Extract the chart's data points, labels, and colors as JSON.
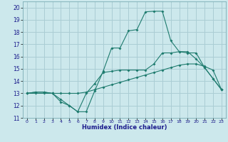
{
  "title": "",
  "xlabel": "Humidex (Indice chaleur)",
  "bg_color": "#cce8ec",
  "grid_color": "#aacdd4",
  "line_color": "#1e7b6e",
  "xlim": [
    -0.5,
    23.5
  ],
  "ylim": [
    11,
    20.5
  ],
  "xticks": [
    0,
    1,
    2,
    3,
    4,
    5,
    6,
    7,
    8,
    9,
    10,
    11,
    12,
    13,
    14,
    15,
    16,
    17,
    18,
    19,
    20,
    21,
    22,
    23
  ],
  "yticks": [
    11,
    12,
    13,
    14,
    15,
    16,
    17,
    18,
    19,
    20
  ],
  "line1_x": [
    0,
    1,
    2,
    3,
    4,
    5,
    6,
    7,
    8,
    9,
    10,
    11,
    12,
    13,
    14,
    15,
    16,
    17,
    18,
    19,
    20,
    21,
    22,
    23
  ],
  "line1_y": [
    13.0,
    13.0,
    13.0,
    13.0,
    13.0,
    13.0,
    13.0,
    13.1,
    13.3,
    13.5,
    13.7,
    13.9,
    14.1,
    14.3,
    14.5,
    14.7,
    14.9,
    15.1,
    15.3,
    15.4,
    15.4,
    15.2,
    14.9,
    13.3
  ],
  "line2_x": [
    0,
    1,
    2,
    3,
    4,
    5,
    6,
    7,
    8,
    9,
    10,
    11,
    12,
    13,
    14,
    15,
    16,
    17,
    18,
    19,
    20,
    21,
    22,
    23
  ],
  "line2_y": [
    13.0,
    13.1,
    13.1,
    13.0,
    12.5,
    12.0,
    11.5,
    13.0,
    13.8,
    14.7,
    14.8,
    14.9,
    14.9,
    14.9,
    14.9,
    15.4,
    16.3,
    16.3,
    16.4,
    16.4,
    15.8,
    15.1,
    14.2,
    13.3
  ],
  "line3_x": [
    0,
    1,
    2,
    3,
    4,
    5,
    6,
    7,
    8,
    9,
    10,
    11,
    12,
    13,
    14,
    15,
    16,
    17,
    18,
    19,
    20,
    21,
    22,
    23
  ],
  "line3_y": [
    13.0,
    13.1,
    13.1,
    13.0,
    12.3,
    12.0,
    11.5,
    11.5,
    13.2,
    14.8,
    16.7,
    16.7,
    18.1,
    18.2,
    19.65,
    19.7,
    19.7,
    17.3,
    16.4,
    16.3,
    16.3,
    15.1,
    14.2,
    13.3
  ]
}
